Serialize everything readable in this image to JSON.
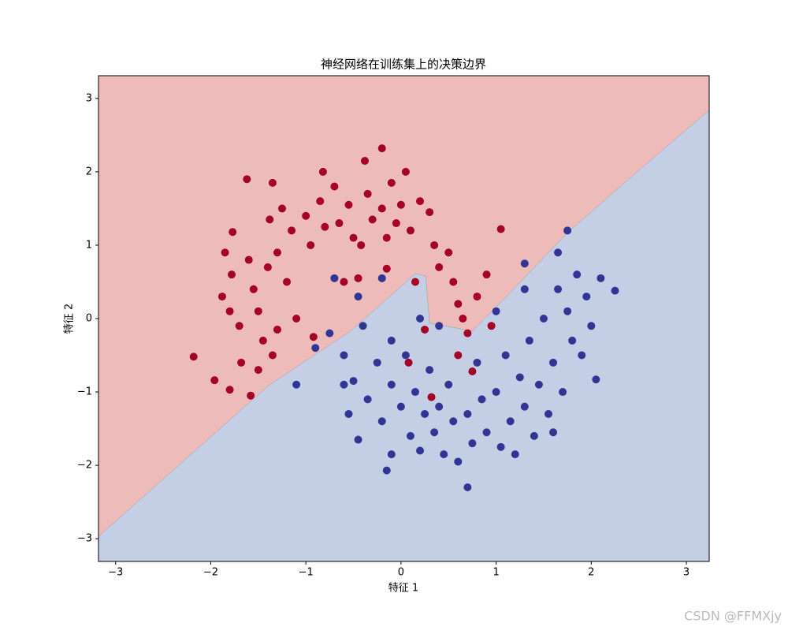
{
  "chart_data": {
    "type": "scatter",
    "title": "神经网络在训练集上的决策边界",
    "xlabel": "特征 1",
    "ylabel": "特征 2",
    "watermark": "CSDN @FFMXjy",
    "xlim": [
      -3.18,
      3.24
    ],
    "ylim": [
      -3.31,
      3.31
    ],
    "xticks": [
      {
        "value": -3,
        "label": "−3"
      },
      {
        "value": -2,
        "label": "−2"
      },
      {
        "value": -1,
        "label": "−1"
      },
      0,
      1,
      2,
      3
    ],
    "yticks": [
      {
        "value": -3,
        "label": "−3"
      },
      {
        "value": -2,
        "label": "−2"
      },
      {
        "value": -1,
        "label": "−1"
      },
      0,
      1,
      2,
      3
    ],
    "region_colors": [
      "#eebbbb",
      "#c4cfe6"
    ],
    "decision_boundary": {
      "x": [
        -3.18,
        -1.4,
        -0.53,
        0.15,
        0.26,
        0.3,
        0.75,
        1.08,
        1.75,
        2.41,
        3.24
      ],
      "y": [
        -2.97,
        -0.92,
        -0.17,
        0.61,
        0.58,
        -0.06,
        -0.17,
        0.26,
        1.17,
        1.92,
        2.84
      ]
    },
    "series": [
      {
        "color": "#a50026",
        "x": [
          -2.18,
          -1.96,
          -1.8,
          -1.68,
          -1.58,
          -1.5,
          -1.45,
          -1.7,
          -1.8,
          -1.88,
          -1.78,
          -1.85,
          -1.77,
          -1.6,
          -1.55,
          -1.5,
          -1.35,
          -1.3,
          -1.4,
          -1.38,
          -1.25,
          -1.15,
          -1.3,
          -1.2,
          -1.1,
          -1.0,
          -0.95,
          -0.85,
          -0.8,
          -0.7,
          -0.65,
          -0.55,
          -0.5,
          -0.42,
          -0.35,
          -0.3,
          -0.2,
          -0.15,
          -0.1,
          -0.05,
          0.0,
          0.05,
          0.1,
          0.2,
          0.3,
          0.35,
          0.4,
          0.5,
          0.55,
          0.6,
          0.65,
          0.7,
          0.8,
          0.9,
          0.95,
          -1.62,
          -1.35,
          -0.82,
          -0.38,
          -0.2,
          0.25,
          -0.15,
          -0.45,
          0.75,
          0.32,
          -0.92,
          0.6,
          0.15,
          -0.6,
          0.08,
          1.05
        ],
        "y": [
          -0.52,
          -0.84,
          -0.97,
          -0.6,
          -1.05,
          -0.7,
          -0.3,
          -0.1,
          0.1,
          0.3,
          0.6,
          0.9,
          1.18,
          0.8,
          0.4,
          0.1,
          -0.5,
          -0.15,
          0.7,
          1.35,
          1.5,
          1.2,
          0.9,
          0.5,
          0.0,
          1.4,
          1.0,
          1.6,
          1.25,
          1.8,
          1.3,
          1.55,
          1.1,
          1.0,
          1.7,
          1.35,
          1.5,
          1.1,
          1.85,
          1.3,
          1.55,
          2.0,
          1.2,
          1.6,
          1.45,
          1.0,
          0.7,
          0.9,
          0.5,
          0.2,
          0.0,
          -0.2,
          0.3,
          0.6,
          -0.1,
          1.9,
          1.85,
          2.0,
          2.15,
          2.32,
          -0.15,
          0.68,
          0.55,
          -0.72,
          -1.07,
          -0.25,
          -0.5,
          0.5,
          0.5,
          -0.6,
          1.22
        ]
      },
      {
        "color": "#313695",
        "x": [
          -1.1,
          -0.9,
          -0.75,
          -0.6,
          -0.5,
          -0.55,
          -0.45,
          -0.4,
          -0.35,
          -0.25,
          -0.2,
          -0.15,
          -0.1,
          -0.1,
          0.0,
          0.05,
          0.1,
          0.15,
          0.2,
          0.25,
          0.3,
          0.35,
          0.4,
          0.45,
          0.5,
          0.55,
          0.6,
          0.7,
          0.7,
          0.75,
          0.8,
          0.85,
          0.9,
          1.0,
          1.05,
          1.1,
          1.15,
          1.2,
          1.25,
          1.3,
          1.35,
          1.4,
          1.45,
          1.5,
          1.55,
          1.6,
          1.65,
          1.7,
          1.75,
          1.8,
          1.85,
          1.9,
          1.95,
          2.05,
          2.1,
          2.25,
          1.75,
          1.65,
          1.3,
          -0.2,
          -0.7,
          -0.45,
          0.4,
          1.0,
          1.3,
          1.6,
          2.0,
          0.2,
          -0.6,
          -0.1
        ],
        "y": [
          -0.9,
          -0.4,
          -0.2,
          -0.5,
          -0.85,
          -1.3,
          -1.65,
          -0.1,
          -1.1,
          -0.6,
          -1.4,
          -2.07,
          -0.9,
          -1.85,
          -1.2,
          -0.5,
          -1.6,
          -1.0,
          -1.8,
          -1.3,
          -0.7,
          -1.55,
          -1.2,
          -1.85,
          -0.9,
          -1.4,
          -1.95,
          -1.3,
          -2.3,
          -1.7,
          -0.6,
          -1.1,
          -1.55,
          -1.0,
          -1.75,
          -0.5,
          -1.4,
          -1.85,
          -0.8,
          -1.2,
          -0.3,
          -1.6,
          -0.9,
          0.0,
          -1.3,
          -0.6,
          0.4,
          -1.0,
          0.1,
          -0.3,
          0.6,
          -0.5,
          0.3,
          -0.83,
          0.55,
          0.38,
          1.2,
          0.9,
          0.75,
          0.55,
          0.55,
          0.3,
          -0.1,
          0.1,
          0.4,
          -1.55,
          -0.1,
          0.0,
          -0.9,
          -0.3
        ]
      }
    ]
  }
}
